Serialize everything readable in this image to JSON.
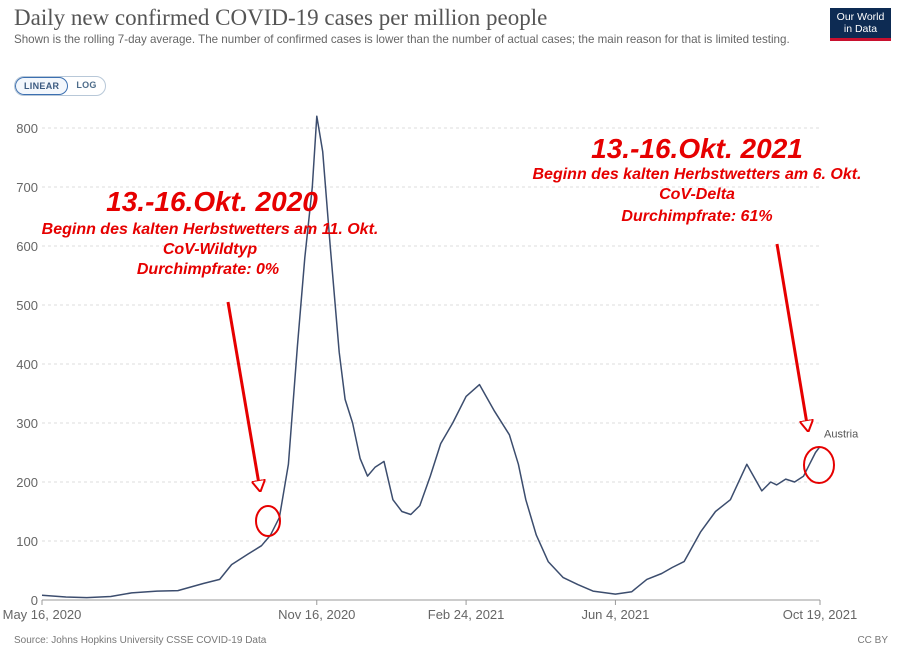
{
  "header": {
    "title": "Daily new confirmed COVID-19 cases per million people",
    "subtitle": "Shown is the rolling 7-day average. The number of confirmed cases is lower than the number of actual cases; the main reason for that is limited testing.",
    "logo_line1": "Our World",
    "logo_line2": "in Data"
  },
  "scale_toggle": {
    "linear_label": "LINEAR",
    "log_label": "LOG",
    "selected": "LINEAR"
  },
  "footer": {
    "source": "Source: Johns Hopkins University CSSE COVID-19 Data",
    "license": "CC BY"
  },
  "colors": {
    "series": "#3c4d6e",
    "annotation": "#e60000",
    "grid": "#dddddd",
    "axis_text": "#666666"
  },
  "annotations": {
    "left": {
      "heading": "13.-16.Okt. 2020",
      "line1": "Beginn des kalten Herbstwetters am 11. Okt.",
      "line2": "CoV-Wildtyp",
      "line3": "Durchimpfrate: 0%"
    },
    "right": {
      "heading": "13.-16.Okt. 2021",
      "line1": "Beginn des kalten Herbstwetters am 6. Okt.",
      "line2": "CoV-Delta",
      "line3": "Durchimpfrate: 61%"
    }
  },
  "chart_data": {
    "type": "line",
    "title": "Daily new confirmed COVID-19 cases per million people",
    "xlabel": "",
    "ylabel": "",
    "ylim": [
      0,
      800
    ],
    "yticks": [
      0,
      100,
      200,
      300,
      400,
      500,
      600,
      700,
      800
    ],
    "xticks": [
      "2020-05-16",
      "2020-11-16",
      "2021-02-24",
      "2021-06-04",
      "2021-10-19"
    ],
    "xtick_labels": [
      "May 16, 2020",
      "Nov 16, 2020",
      "Feb 24, 2021",
      "Jun 4, 2021",
      "Oct 19, 2021"
    ],
    "xlim": [
      "2020-05-16",
      "2021-10-19"
    ],
    "grid": "horizontal dashed",
    "legend": "end-of-line label",
    "series": [
      {
        "name": "Austria",
        "x": [
          "2020-05-16",
          "2020-06-01",
          "2020-06-15",
          "2020-07-01",
          "2020-07-15",
          "2020-08-01",
          "2020-08-15",
          "2020-09-01",
          "2020-09-12",
          "2020-09-20",
          "2020-10-01",
          "2020-10-10",
          "2020-10-16",
          "2020-10-22",
          "2020-10-28",
          "2020-11-03",
          "2020-11-08",
          "2020-11-13",
          "2020-11-16",
          "2020-11-20",
          "2020-11-25",
          "2020-12-01",
          "2020-12-05",
          "2020-12-10",
          "2020-12-15",
          "2020-12-20",
          "2020-12-25",
          "2020-12-31",
          "2021-01-06",
          "2021-01-12",
          "2021-01-18",
          "2021-01-24",
          "2021-01-31",
          "2021-02-07",
          "2021-02-15",
          "2021-02-24",
          "2021-03-05",
          "2021-03-15",
          "2021-03-25",
          "2021-03-31",
          "2021-04-05",
          "2021-04-12",
          "2021-04-20",
          "2021-04-30",
          "2021-05-10",
          "2021-05-20",
          "2021-06-04",
          "2021-06-15",
          "2021-06-25",
          "2021-07-05",
          "2021-07-12",
          "2021-07-20",
          "2021-07-31",
          "2021-08-10",
          "2021-08-20",
          "2021-08-31",
          "2021-09-10",
          "2021-09-16",
          "2021-09-20",
          "2021-09-26",
          "2021-10-02",
          "2021-10-08",
          "2021-10-12",
          "2021-10-16",
          "2021-10-19"
        ],
        "y": [
          8,
          5,
          4,
          6,
          12,
          15,
          16,
          28,
          35,
          60,
          78,
          92,
          110,
          140,
          230,
          430,
          580,
          700,
          820,
          760,
          600,
          420,
          340,
          300,
          240,
          210,
          225,
          235,
          170,
          150,
          145,
          160,
          210,
          265,
          300,
          345,
          365,
          320,
          280,
          230,
          170,
          110,
          65,
          38,
          26,
          15,
          10,
          14,
          35,
          45,
          55,
          65,
          115,
          150,
          170,
          230,
          185,
          200,
          195,
          205,
          200,
          210,
          230,
          250,
          260
        ]
      }
    ]
  }
}
